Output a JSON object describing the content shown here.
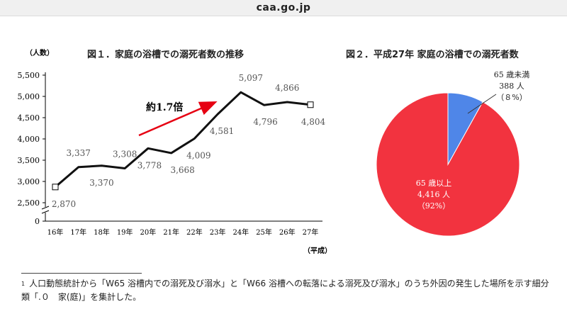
{
  "site": {
    "domain": "caa.go.jp"
  },
  "figure1": {
    "title": "図１．家庭の浴槽での溺死者数の推移",
    "unit_label": "（人数）",
    "era_label": "（平成）",
    "annotation": "約1.7倍"
  },
  "figure2": {
    "title": "図２．平成27年 家庭の浴槽での溺死者数"
  },
  "chart_data": [
    {
      "type": "line",
      "title": "図１．家庭の浴槽での溺死者数の推移",
      "ylabel": "（人数）",
      "xlabel": "（平成）",
      "categories": [
        "16年",
        "17年",
        "18年",
        "19年",
        "20年",
        "21年",
        "22年",
        "23年",
        "24年",
        "25年",
        "26年",
        "27年"
      ],
      "values": [
        2870,
        3337,
        3370,
        3308,
        3778,
        3668,
        4009,
        4581,
        5097,
        4796,
        4866,
        4804
      ],
      "value_labels": [
        "2,870",
        "3,337",
        "3,370",
        "3,308",
        "3,778",
        "3,668",
        "4,009",
        "4,581",
        "5,097",
        "4,796",
        "4,866",
        "4,804"
      ],
      "yticks": [
        "5,500",
        "5,000",
        "4,500",
        "4,000",
        "3,500",
        "3,000",
        "2,500",
        "0"
      ],
      "ylim": [
        2500,
        5500
      ],
      "axis_break": true,
      "grid": false,
      "line_color": "#111111",
      "arrow_color": "#e60012",
      "annotation": "約1.7倍"
    },
    {
      "type": "pie",
      "title": "図２．平成27年 家庭の浴槽での溺死者数",
      "slices": [
        {
          "name": "65 歳以上",
          "count": "4,416 人",
          "percent_label": "（92%）",
          "value": 4416,
          "color": "#f2333f"
        },
        {
          "name": "65 歳未満",
          "count": "388 人",
          "percent_label": "（８%）",
          "value": 388,
          "color": "#4f86e8"
        }
      ]
    }
  ],
  "footnote": {
    "marker": "1",
    "text": "人口動態統計から「W65 浴槽内での溺死及び溺水」と「W66 浴槽への転落による溺死及び溺水」のうち外因の発生した場所を示す細分類「.０　家(庭)」を集計した。"
  }
}
